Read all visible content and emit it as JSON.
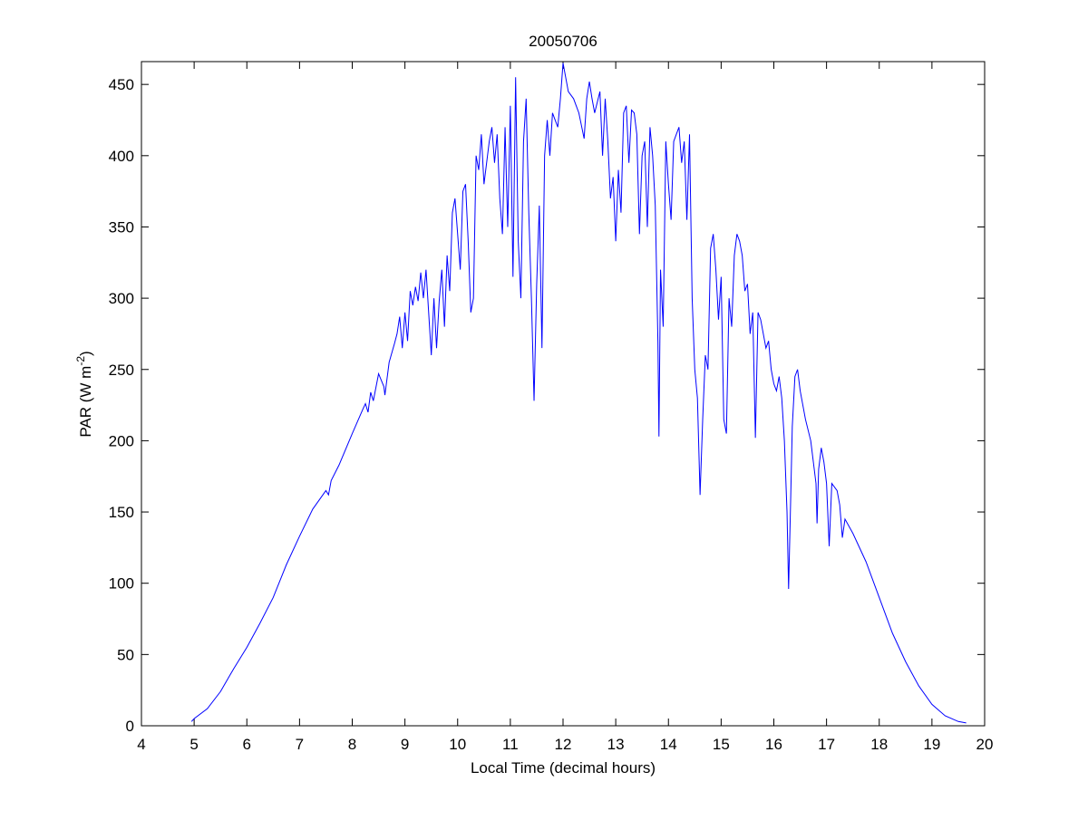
{
  "chart_data": {
    "type": "line",
    "title": "20050706",
    "x_label": "Local Time (decimal hours)",
    "y_label": [
      "PAR (W m",
      "-2",
      ")"
    ],
    "color": "#0000ff",
    "xlim": [
      4,
      20
    ],
    "xticks": [
      4,
      5,
      6,
      7,
      8,
      9,
      10,
      11,
      12,
      13,
      14,
      15,
      16,
      17,
      18,
      19,
      20
    ],
    "ylim": [
      0,
      466
    ],
    "yticks": [
      0,
      50,
      100,
      150,
      200,
      250,
      300,
      350,
      400,
      450
    ],
    "x": [
      4.95,
      5.0,
      5.25,
      5.5,
      5.75,
      6.0,
      6.25,
      6.5,
      6.75,
      7.0,
      7.25,
      7.5,
      7.55,
      7.6,
      7.75,
      8.0,
      8.2,
      8.25,
      8.3,
      8.35,
      8.4,
      8.5,
      8.6,
      8.62,
      8.7,
      8.8,
      8.85,
      8.9,
      8.95,
      9.0,
      9.05,
      9.1,
      9.15,
      9.2,
      9.25,
      9.3,
      9.35,
      9.4,
      9.45,
      9.5,
      9.55,
      9.6,
      9.65,
      9.7,
      9.75,
      9.8,
      9.85,
      9.9,
      9.95,
      10.0,
      10.05,
      10.1,
      10.15,
      10.2,
      10.25,
      10.3,
      10.35,
      10.4,
      10.45,
      10.5,
      10.55,
      10.6,
      10.65,
      10.7,
      10.75,
      10.8,
      10.85,
      10.9,
      10.95,
      11.0,
      11.05,
      11.1,
      11.15,
      11.2,
      11.25,
      11.3,
      11.35,
      11.4,
      11.45,
      11.5,
      11.55,
      11.6,
      11.65,
      11.7,
      11.75,
      11.8,
      11.9,
      11.95,
      12.0,
      12.05,
      12.1,
      12.2,
      12.3,
      12.4,
      12.45,
      12.5,
      12.55,
      12.6,
      12.7,
      12.75,
      12.8,
      12.85,
      12.9,
      12.95,
      13.0,
      13.05,
      13.1,
      13.15,
      13.2,
      13.25,
      13.3,
      13.35,
      13.4,
      13.45,
      13.5,
      13.55,
      13.6,
      13.65,
      13.7,
      13.75,
      13.8,
      13.82,
      13.85,
      13.9,
      13.95,
      14.0,
      14.05,
      14.1,
      14.15,
      14.2,
      14.25,
      14.3,
      14.35,
      14.4,
      14.45,
      14.5,
      14.55,
      14.6,
      14.65,
      14.7,
      14.75,
      14.8,
      14.85,
      14.9,
      14.95,
      15.0,
      15.05,
      15.1,
      15.15,
      15.2,
      15.25,
      15.3,
      15.35,
      15.4,
      15.45,
      15.5,
      15.55,
      15.6,
      15.65,
      15.7,
      15.75,
      15.8,
      15.85,
      15.9,
      15.95,
      16.0,
      16.05,
      16.1,
      16.15,
      16.2,
      16.25,
      16.28,
      16.32,
      16.35,
      16.4,
      16.45,
      16.5,
      16.6,
      16.7,
      16.75,
      16.8,
      16.82,
      16.85,
      16.9,
      16.95,
      17.0,
      17.05,
      17.1,
      17.2,
      17.25,
      17.3,
      17.35,
      17.5,
      17.75,
      18.0,
      18.25,
      18.5,
      18.75,
      19.0,
      19.25,
      19.5,
      19.65
    ],
    "values": [
      3,
      5,
      12,
      24,
      40,
      55,
      72,
      90,
      113,
      133,
      152,
      165,
      162,
      172,
      183,
      205,
      222,
      226,
      220,
      234,
      228,
      247,
      238,
      232,
      255,
      268,
      275,
      287,
      265,
      290,
      270,
      305,
      295,
      308,
      298,
      318,
      300,
      320,
      290,
      260,
      300,
      265,
      298,
      320,
      280,
      330,
      305,
      360,
      370,
      345,
      320,
      375,
      380,
      340,
      290,
      300,
      400,
      390,
      415,
      380,
      395,
      410,
      420,
      395,
      415,
      370,
      345,
      420,
      350,
      435,
      315,
      455,
      340,
      300,
      410,
      440,
      360,
      300,
      228,
      310,
      365,
      265,
      400,
      425,
      400,
      430,
      420,
      440,
      465,
      455,
      445,
      440,
      430,
      412,
      440,
      452,
      440,
      430,
      445,
      400,
      440,
      410,
      370,
      385,
      340,
      390,
      360,
      430,
      435,
      395,
      432,
      430,
      415,
      345,
      400,
      410,
      350,
      420,
      400,
      365,
      270,
      203,
      320,
      280,
      410,
      380,
      355,
      410,
      415,
      420,
      395,
      410,
      355,
      415,
      300,
      250,
      230,
      162,
      215,
      260,
      250,
      335,
      345,
      320,
      285,
      315,
      215,
      205,
      300,
      280,
      330,
      345,
      340,
      330,
      305,
      310,
      275,
      290,
      202,
      290,
      285,
      275,
      265,
      270,
      250,
      240,
      235,
      245,
      230,
      200,
      150,
      96,
      160,
      210,
      245,
      250,
      235,
      215,
      200,
      185,
      170,
      142,
      180,
      195,
      185,
      170,
      126,
      170,
      165,
      155,
      132,
      145,
      135,
      115,
      90,
      65,
      45,
      28,
      15,
      7,
      3,
      2
    ]
  }
}
